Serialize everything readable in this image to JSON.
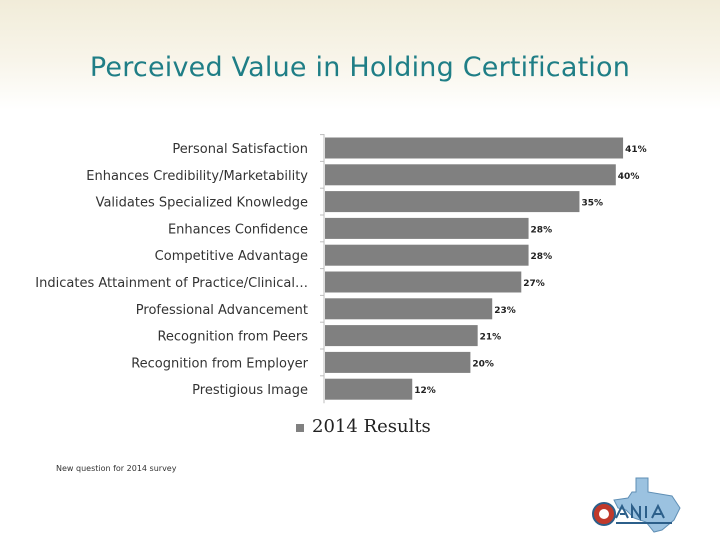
{
  "title": "Perceived Value in Holding Certification",
  "footnote": "New question for 2014 survey",
  "colors": {
    "title": "#1f7e86",
    "bar": "#808080",
    "label": "#333333"
  },
  "chart_data": {
    "type": "bar",
    "orientation": "horizontal",
    "categories": [
      "Personal Satisfaction",
      "Enhances Credibility/Marketability",
      "Validates Specialized Knowledge",
      "Enhances Confidence",
      "Competitive Advantage",
      "Indicates Attainment of Practice/Clinical…",
      "Professional Advancement",
      "Recognition from Peers",
      "Recognition from Employer",
      "Prestigious Image"
    ],
    "series": [
      {
        "name": "2014 Results",
        "values": [
          41,
          40,
          35,
          28,
          28,
          27,
          23,
          21,
          20,
          12
        ]
      }
    ],
    "value_labels": [
      "41%",
      "40%",
      "35%",
      "28%",
      "28%",
      "27%",
      "23%",
      "21%",
      "20%",
      "12%"
    ],
    "xlim": [
      0,
      45
    ],
    "grid": false,
    "legend_position": "bottom-center"
  }
}
